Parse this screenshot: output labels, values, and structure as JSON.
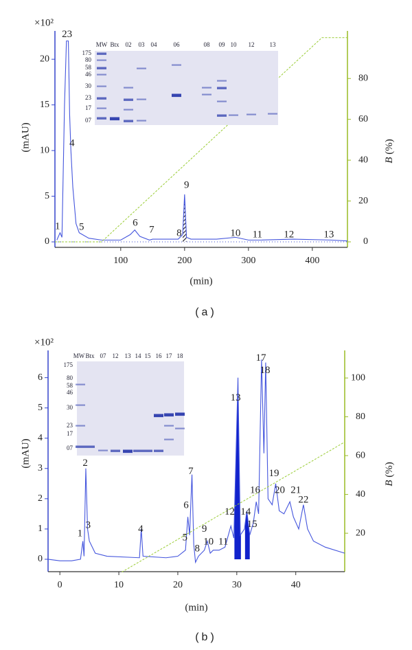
{
  "chart_data": [
    {
      "type": "line",
      "panel_label": "(a)",
      "x_label": "(min)",
      "y_label": "(mAU)",
      "y_multiplier": "×10²",
      "y2_label_var": "B",
      "y2_label_unit": "(%)",
      "xlim": [
        -3,
        455
      ],
      "xticks": [
        100,
        200,
        300,
        400
      ],
      "ylim": [
        -0.6,
        23.1
      ],
      "yticks": [
        0,
        5,
        10,
        15,
        20
      ],
      "y2lim": [
        -2.7,
        103.3
      ],
      "y2ticks": [
        0,
        20,
        40,
        60,
        80
      ],
      "axis_color": "#3344cc",
      "axis2_color": "#99bb22",
      "baseline": true,
      "series": [
        {
          "color": "#4455dd",
          "x": [
            0,
            5,
            8,
            12,
            15,
            18,
            20,
            22,
            25,
            30,
            35,
            40,
            50,
            70,
            100,
            115,
            122,
            130,
            145,
            150,
            190,
            197,
            200,
            203,
            210,
            250,
            280,
            300,
            320,
            370,
            430,
            455
          ],
          "values": [
            0.2,
            1,
            0.5,
            15,
            22,
            22,
            14,
            10,
            6,
            2,
            1,
            0.8,
            0.4,
            0.2,
            0.2,
            0.8,
            1.3,
            0.6,
            0.2,
            0.3,
            0.3,
            0.8,
            5.2,
            0.5,
            0.3,
            0.3,
            0.5,
            0.2,
            0.2,
            0.3,
            0.2,
            0.1
          ]
        },
        {
          "color": "#99cc33",
          "axis": "y2",
          "dash": true,
          "x": [
            -3,
            70,
            415,
            455
          ],
          "values": [
            0,
            0,
            100,
            100
          ]
        }
      ],
      "fill_style": "hatch",
      "fill_ranges": [
        [
          197,
          203
        ]
      ],
      "peaks": [
        {
          "label": "1",
          "x": 1,
          "y": 1.65
        },
        {
          "label": "23",
          "x": 16,
          "y": 22.7
        },
        {
          "label": "4",
          "x": 23.7,
          "y": 10.75
        },
        {
          "label": "5",
          "x": 38.7,
          "y": 1.58
        },
        {
          "label": "6",
          "x": 122.6,
          "y": 2.03
        },
        {
          "label": "7",
          "x": 148.4,
          "y": 1.28
        },
        {
          "label": "8",
          "x": 191.4,
          "y": 0.9
        },
        {
          "label": "9",
          "x": 203.2,
          "y": 6.17
        },
        {
          "label": "10",
          "x": 279.6,
          "y": 0.9
        },
        {
          "label": "11",
          "x": 314,
          "y": 0.75
        },
        {
          "label": "12",
          "x": 363.4,
          "y": 0.75
        },
        {
          "label": "13",
          "x": 425.8,
          "y": 0.75
        }
      ],
      "gel": {
        "lanes": [
          "MW",
          "Btx",
          "02",
          "03",
          "04",
          "06",
          "08",
          "09",
          "10",
          "12",
          "13"
        ],
        "mw_labels": [
          "175",
          "80",
          "58",
          "46",
          "30",
          "23",
          "17",
          "07"
        ]
      }
    },
    {
      "type": "line",
      "panel_label": "(b)",
      "x_label": "(min)",
      "y_label": "(mAU)",
      "y_multiplier": "×10²",
      "y2_label_var": "B",
      "y2_label_unit": "(%)",
      "xlim": [
        -2,
        48.3
      ],
      "xticks": [
        0,
        10,
        20,
        30,
        40
      ],
      "ylim": [
        -0.41,
        6.9
      ],
      "yticks": [
        0,
        1,
        2,
        3,
        4,
        5,
        6
      ],
      "y2lim": [
        0.2,
        114.2
      ],
      "y2ticks": [
        20,
        40,
        60,
        80,
        100
      ],
      "axis_color": "#3344cc",
      "axis2_color": "#99bb22",
      "baseline": false,
      "series": [
        {
          "color": "#4455dd",
          "x": [
            -2,
            0,
            2,
            3.5,
            3.9,
            4.1,
            4.4,
            4.7,
            5,
            6,
            8,
            13.5,
            13.8,
            14.1,
            18,
            20,
            21.3,
            21.7,
            22,
            22.4,
            22.7,
            23,
            23.5,
            24.5,
            25,
            25.5,
            26,
            27,
            28,
            29,
            29.5,
            30.2,
            30.6,
            31.3,
            31.7,
            32.2,
            32.8,
            33.3,
            33.7,
            34.2,
            34.6,
            34.9,
            35.3,
            36,
            36.6,
            37.2,
            38,
            39,
            39.6,
            40.5,
            41.3,
            42,
            43,
            45,
            48.3
          ],
          "values": [
            0,
            -0.05,
            -0.05,
            0,
            0.6,
            0.1,
            3.0,
            1.0,
            0.6,
            0.2,
            0.1,
            0.05,
            1.0,
            0.1,
            0.05,
            0.1,
            0.3,
            1.4,
            0.8,
            2.8,
            0.5,
            -0.1,
            0.1,
            0.3,
            0.6,
            0.2,
            0.3,
            0.3,
            0.4,
            1.1,
            0.7,
            6.0,
            0.8,
            1.0,
            1.6,
            0.8,
            1.2,
            1.9,
            1.5,
            6.6,
            3.5,
            6.5,
            2.0,
            1.8,
            2.5,
            1.6,
            1.5,
            1.9,
            1.4,
            1.0,
            1.8,
            1.0,
            0.6,
            0.4,
            0.2
          ]
        },
        {
          "color": "#99cc33",
          "axis": "y2",
          "dash": true,
          "x": [
            10.5,
            48.3
          ],
          "values": [
            0,
            67
          ]
        }
      ],
      "fill_style": "solid",
      "fill_ranges": [
        [
          29.6,
          30.7
        ],
        [
          31.4,
          32.2
        ]
      ],
      "peaks": [
        {
          "label": "1",
          "x": 3.4,
          "y": 0.84
        },
        {
          "label": "2",
          "x": 4.3,
          "y": 3.16
        },
        {
          "label": "3",
          "x": 4.8,
          "y": 1.11
        },
        {
          "label": "4",
          "x": 13.7,
          "y": 0.98
        },
        {
          "label": "5",
          "x": 21.2,
          "y": 0.7
        },
        {
          "label": "6",
          "x": 21.4,
          "y": 1.77
        },
        {
          "label": "7",
          "x": 22.2,
          "y": 2.89
        },
        {
          "label": "8",
          "x": 23.3,
          "y": 0.34
        },
        {
          "label": "9",
          "x": 24.5,
          "y": 0.98
        },
        {
          "label": "10",
          "x": 25.2,
          "y": 0.57
        },
        {
          "label": "11",
          "x": 27.7,
          "y": 0.57
        },
        {
          "label": "12",
          "x": 28.8,
          "y": 1.55
        },
        {
          "label": "13",
          "x": 29.8,
          "y": 5.32
        },
        {
          "label": "14",
          "x": 31.5,
          "y": 1.55
        },
        {
          "label": "15",
          "x": 32.6,
          "y": 1.14
        },
        {
          "label": "16",
          "x": 33.1,
          "y": 2.27
        },
        {
          "label": "17",
          "x": 34.1,
          "y": 6.64
        },
        {
          "label": "18",
          "x": 34.8,
          "y": 6.23
        },
        {
          "label": "19",
          "x": 36.3,
          "y": 2.82
        },
        {
          "label": "20",
          "x": 37.3,
          "y": 2.27
        },
        {
          "label": "21",
          "x": 40,
          "y": 2.27
        },
        {
          "label": "22",
          "x": 41.3,
          "y": 1.95
        }
      ],
      "gel": {
        "lanes": [
          "MW",
          "Btx",
          "07",
          "12",
          "13",
          "14",
          "15",
          "16",
          "17",
          "18"
        ],
        "mw_labels": [
          "175",
          "80",
          "58",
          "46",
          "30",
          "23",
          "17",
          "07"
        ]
      }
    }
  ]
}
